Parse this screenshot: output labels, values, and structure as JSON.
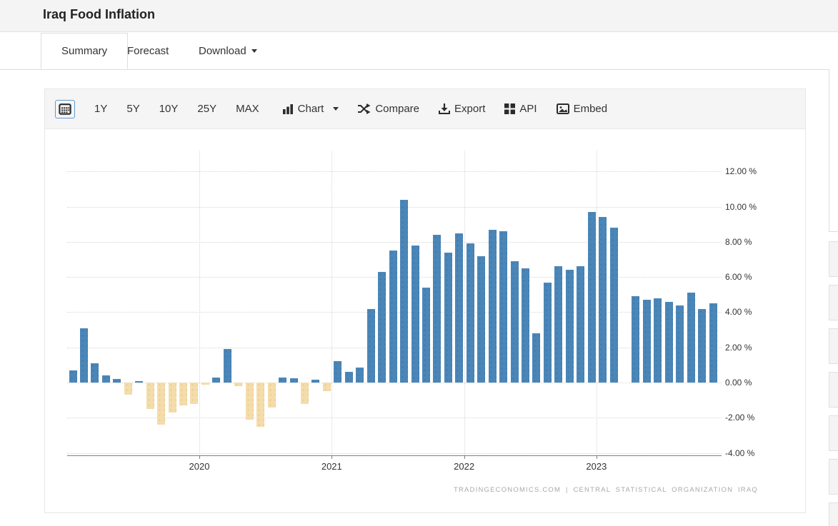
{
  "page": {
    "title": "Iraq Food Inflation"
  },
  "tabs": {
    "summary": "Summary",
    "forecast": "Forecast",
    "download": "Download"
  },
  "toolbar": {
    "calendar_icon": "calendar-icon",
    "ranges": [
      "1Y",
      "5Y",
      "10Y",
      "25Y",
      "MAX"
    ],
    "chart_label": "Chart",
    "compare_label": "Compare",
    "export_label": "Export",
    "api_label": "API",
    "embed_label": "Embed"
  },
  "attribution": "TRADINGECONOMICS.COM | CENTRAL STATISTICAL ORGANIZATION IRAQ",
  "colors": {
    "positive_bar": "#4a86b8",
    "negative_bar": "#f4dcab",
    "grid": "#d6d6d6",
    "axis": "#808080",
    "header_bg": "#f4f4f4",
    "toolbar_bg": "#f5f5f5"
  },
  "chart_data": {
    "type": "bar",
    "title": "Iraq Food Inflation",
    "ylabel": "",
    "xlabel": "",
    "unit": "%",
    "ylim": [
      -4,
      12
    ],
    "grid": "dotted",
    "legend": "none",
    "ytick_labels": [
      "12.00 %",
      "10.00 %",
      "8.00 %",
      "6.00 %",
      "4.00 %",
      "2.00 %",
      "0.00 %",
      "-2.00 %",
      "-4.00 %"
    ],
    "ytick_values": [
      12,
      10,
      8,
      6,
      4,
      2,
      0,
      -2,
      -4
    ],
    "year_ticks": [
      "2020",
      "2021",
      "2022",
      "2023"
    ],
    "months": [
      "2019-01",
      "2019-02",
      "2019-03",
      "2019-04",
      "2019-05",
      "2019-06",
      "2019-07",
      "2019-08",
      "2019-09",
      "2019-10",
      "2019-11",
      "2019-12",
      "2020-01",
      "2020-02",
      "2020-03",
      "2020-04",
      "2020-05",
      "2020-06",
      "2020-07",
      "2020-08",
      "2020-09",
      "2020-10",
      "2020-11",
      "2020-12",
      "2021-01",
      "2021-02",
      "2021-03",
      "2021-04",
      "2021-05",
      "2021-06",
      "2021-07",
      "2021-08",
      "2021-09",
      "2021-10",
      "2021-11",
      "2021-12",
      "2022-01",
      "2022-02",
      "2022-03",
      "2022-04",
      "2022-05",
      "2022-06",
      "2022-07",
      "2022-08",
      "2022-09",
      "2022-10",
      "2022-11",
      "2022-12",
      "2023-01",
      "2023-02",
      "2023-03",
      "2023-04",
      "2023-05",
      "2023-06",
      "2023-07",
      "2023-08",
      "2023-09",
      "2023-10",
      "2023-11"
    ],
    "values": [
      0.7,
      3.1,
      1.1,
      0.4,
      0.2,
      -0.7,
      0.1,
      -1.5,
      -2.4,
      -1.7,
      -1.3,
      -1.2,
      -0.1,
      0.3,
      1.9,
      -0.2,
      -2.1,
      -2.5,
      -1.4,
      0.3,
      0.25,
      -1.2,
      0.15,
      -0.5,
      1.2,
      0.6,
      0.85,
      4.2,
      6.3,
      7.5,
      10.4,
      7.8,
      5.4,
      8.4,
      7.4,
      8.5,
      7.9,
      7.2,
      8.7,
      8.6,
      6.9,
      6.5,
      2.8,
      5.7,
      6.6,
      6.4,
      6.6,
      9.7,
      9.4,
      8.8,
      null,
      4.9,
      4.7,
      4.8,
      4.6,
      4.4,
      5.1,
      4.2,
      4.5
    ]
  }
}
